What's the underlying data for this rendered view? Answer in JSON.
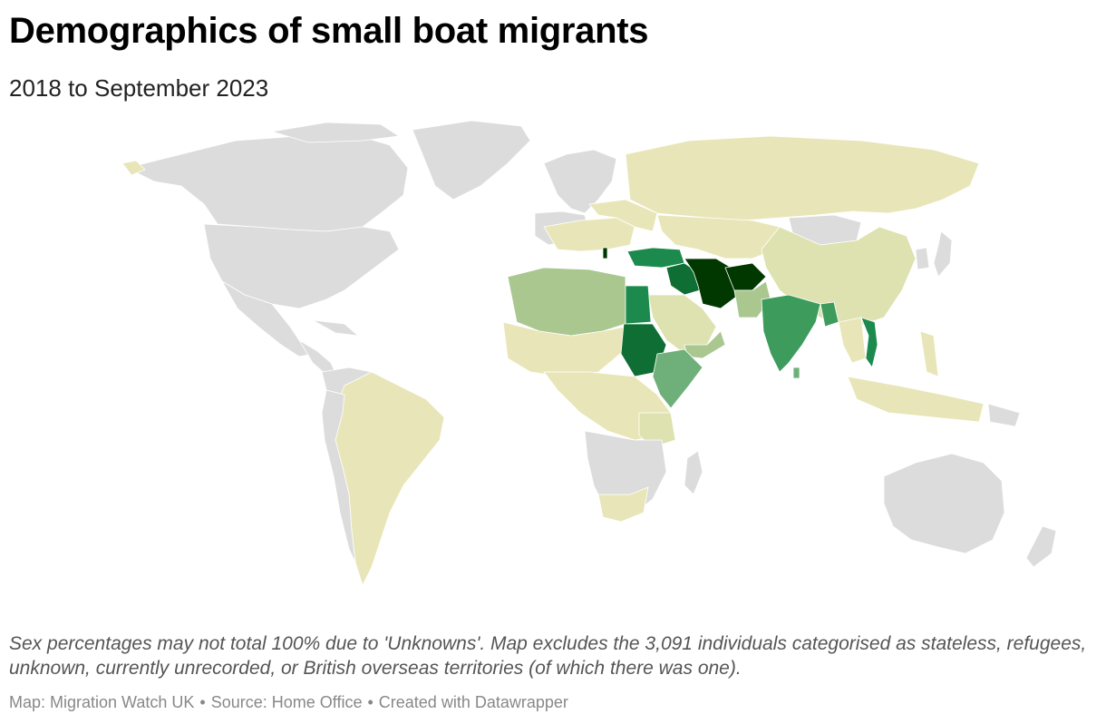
{
  "header": {
    "title": "Demographics of small boat migrants",
    "subtitle": "2018 to September 2023"
  },
  "map": {
    "colors": {
      "no_data": "#dcdcdc",
      "lowest": "#e8e6b8",
      "low": "#dde2b0",
      "mid_low": "#a9c78f",
      "mid": "#6fb07a",
      "mid_high": "#3d9b5c",
      "high": "#1b8a4c",
      "higher": "#0f6e33",
      "highest": "#003800"
    }
  },
  "notes": {
    "text": "Sex percentages may not total 100% due to 'Unknowns'. Map excludes the 3,091 individuals categorised as stateless, refugees, unknown, currently unrecorded, or British overseas territories (of which there was one)."
  },
  "byline": {
    "map": "Map: Migration Watch UK",
    "source": "Source: Home Office",
    "created": "Created with Datawrapper",
    "separator": "•"
  }
}
